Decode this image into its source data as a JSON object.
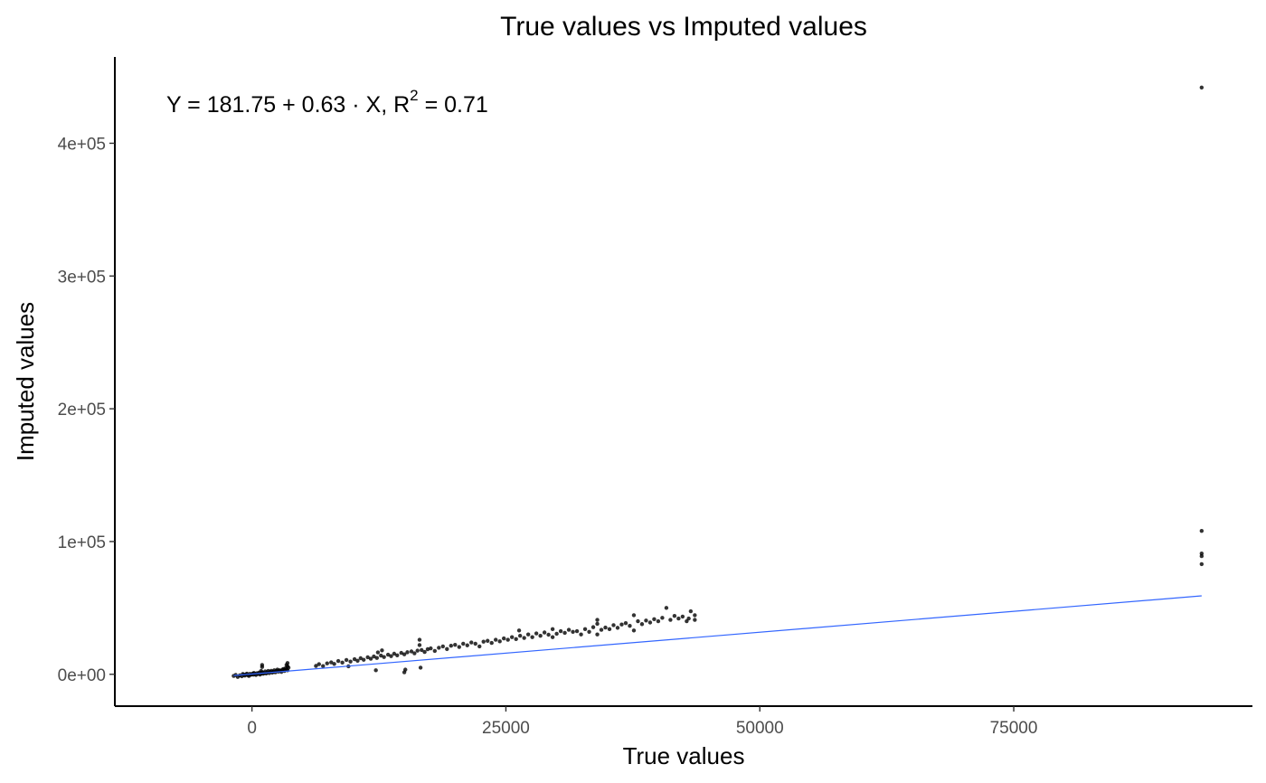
{
  "chart_data": {
    "type": "scatter",
    "title": "True values vs Imputed values",
    "xlabel": "True values",
    "ylabel": "Imputed values",
    "xlim": [
      -13500,
      98500
    ],
    "ylim": [
      -24000,
      465000
    ],
    "x_ticks": [
      {
        "value": 0,
        "label": "0"
      },
      {
        "value": 25000,
        "label": "25000"
      },
      {
        "value": 50000,
        "label": "50000"
      },
      {
        "value": 75000,
        "label": "75000"
      }
    ],
    "y_ticks": [
      {
        "value": 0,
        "label": "0e+00"
      },
      {
        "value": 100000,
        "label": "1e+05"
      },
      {
        "value": 200000,
        "label": "2e+05"
      },
      {
        "value": 300000,
        "label": "3e+05"
      },
      {
        "value": 400000,
        "label": "4e+05"
      }
    ],
    "grid": false,
    "regression": {
      "intercept": 181.75,
      "slope": 0.63,
      "r_squared": 0.71,
      "x_range": [
        -1800,
        93500
      ],
      "color": "#3366ff",
      "equation_label": {
        "prefix": "Y = 181.75 + 0.63 · X,  R",
        "sup": "2",
        "suffix": " = 0.71"
      }
    },
    "point_color": "#000000",
    "points": [
      [
        -1800,
        -1200
      ],
      [
        -1600,
        -500
      ],
      [
        -1400,
        -2000
      ],
      [
        -1200,
        -800
      ],
      [
        -1000,
        -1500
      ],
      [
        -900,
        200
      ],
      [
        -800,
        -300
      ],
      [
        -700,
        -1000
      ],
      [
        -600,
        -200
      ],
      [
        -500,
        500
      ],
      [
        -400,
        -600
      ],
      [
        -300,
        -1200
      ],
      [
        -200,
        300
      ],
      [
        -100,
        -400
      ],
      [
        0,
        0
      ],
      [
        100,
        600
      ],
      [
        150,
        -300
      ],
      [
        200,
        1000
      ],
      [
        300,
        200
      ],
      [
        400,
        -500
      ],
      [
        500,
        800
      ],
      [
        600,
        300
      ],
      [
        700,
        1200
      ],
      [
        800,
        -200
      ],
      [
        900,
        700
      ],
      [
        1000,
        1500
      ],
      [
        1100,
        400
      ],
      [
        1200,
        1000
      ],
      [
        1300,
        2200
      ],
      [
        1400,
        600
      ],
      [
        1500,
        1500
      ],
      [
        1600,
        2500
      ],
      [
        1700,
        900
      ],
      [
        1800,
        1800
      ],
      [
        1900,
        2600
      ],
      [
        2000,
        1200
      ],
      [
        2100,
        2000
      ],
      [
        2200,
        3000
      ],
      [
        2300,
        1500
      ],
      [
        2400,
        2500
      ],
      [
        2500,
        3500
      ],
      [
        2600,
        2000
      ],
      [
        2700,
        3000
      ],
      [
        2800,
        2600
      ],
      [
        2900,
        1800
      ],
      [
        3000,
        3500
      ],
      [
        3100,
        4000
      ],
      [
        3200,
        2500
      ],
      [
        3300,
        4500
      ],
      [
        3400,
        3800
      ],
      [
        3500,
        3000
      ],
      [
        3500,
        6000
      ],
      [
        3500,
        8500
      ],
      [
        3400,
        7000
      ],
      [
        3600,
        5000
      ],
      [
        1000,
        5500
      ],
      [
        1000,
        7000
      ],
      [
        900,
        2500
      ],
      [
        6300,
        6300
      ],
      [
        6600,
        7600
      ],
      [
        7000,
        6200
      ],
      [
        7400,
        8200
      ],
      [
        7800,
        9000
      ],
      [
        8100,
        7800
      ],
      [
        8500,
        10000
      ],
      [
        8900,
        8800
      ],
      [
        9300,
        10800
      ],
      [
        9500,
        6000
      ],
      [
        9700,
        9600
      ],
      [
        10100,
        11400
      ],
      [
        10400,
        10200
      ],
      [
        10700,
        12100
      ],
      [
        11000,
        10900
      ],
      [
        11400,
        12800
      ],
      [
        11700,
        11700
      ],
      [
        12000,
        13400
      ],
      [
        12200,
        3000
      ],
      [
        12300,
        12300
      ],
      [
        12400,
        16500
      ],
      [
        12700,
        14100
      ],
      [
        12800,
        18000
      ],
      [
        13000,
        13000
      ],
      [
        13400,
        14800
      ],
      [
        13700,
        13700
      ],
      [
        14000,
        15500
      ],
      [
        14300,
        14300
      ],
      [
        14700,
        16100
      ],
      [
        15000,
        1500
      ],
      [
        15100,
        3500
      ],
      [
        15000,
        15000
      ],
      [
        15300,
        16600
      ],
      [
        15700,
        17200
      ],
      [
        16000,
        15800
      ],
      [
        16300,
        17800
      ],
      [
        16500,
        26000
      ],
      [
        16500,
        22000
      ],
      [
        16600,
        5000
      ],
      [
        16700,
        18300
      ],
      [
        17000,
        16800
      ],
      [
        17300,
        18900
      ],
      [
        17600,
        19500
      ],
      [
        18000,
        17600
      ],
      [
        18400,
        20000
      ],
      [
        18800,
        21000
      ],
      [
        19200,
        19000
      ],
      [
        19600,
        21500
      ],
      [
        20000,
        22200
      ],
      [
        20400,
        20600
      ],
      [
        20800,
        23000
      ],
      [
        21200,
        21800
      ],
      [
        21600,
        24000
      ],
      [
        22000,
        23000
      ],
      [
        22400,
        21000
      ],
      [
        22800,
        24600
      ],
      [
        23200,
        25200
      ],
      [
        23600,
        23600
      ],
      [
        24000,
        26000
      ],
      [
        24400,
        24800
      ],
      [
        24800,
        27000
      ],
      [
        25200,
        26000
      ],
      [
        25600,
        28000
      ],
      [
        26000,
        26500
      ],
      [
        26300,
        33000
      ],
      [
        26400,
        29000
      ],
      [
        26800,
        27400
      ],
      [
        27200,
        30000
      ],
      [
        27600,
        28000
      ],
      [
        28000,
        30800
      ],
      [
        28400,
        29000
      ],
      [
        28800,
        31500
      ],
      [
        29200,
        29800
      ],
      [
        29600,
        34000
      ],
      [
        29600,
        28000
      ],
      [
        30000,
        30500
      ],
      [
        30400,
        32500
      ],
      [
        30800,
        31200
      ],
      [
        31200,
        33500
      ],
      [
        31600,
        32000
      ],
      [
        32000,
        32500
      ],
      [
        32400,
        30000
      ],
      [
        32800,
        34000
      ],
      [
        33200,
        32000
      ],
      [
        33600,
        35500
      ],
      [
        34000,
        38000
      ],
      [
        34000,
        30000
      ],
      [
        34000,
        41000
      ],
      [
        34400,
        33500
      ],
      [
        34800,
        35200
      ],
      [
        35200,
        34000
      ],
      [
        35600,
        37000
      ],
      [
        36000,
        35000
      ],
      [
        36400,
        37500
      ],
      [
        36800,
        38500
      ],
      [
        37200,
        36500
      ],
      [
        37600,
        44500
      ],
      [
        37600,
        33000
      ],
      [
        38000,
        40000
      ],
      [
        38400,
        37800
      ],
      [
        38800,
        40500
      ],
      [
        39200,
        39000
      ],
      [
        39600,
        41500
      ],
      [
        40000,
        40000
      ],
      [
        40400,
        42500
      ],
      [
        40800,
        50000
      ],
      [
        41200,
        41000
      ],
      [
        41600,
        44000
      ],
      [
        42000,
        42000
      ],
      [
        42400,
        43500
      ],
      [
        42800,
        40000
      ],
      [
        43000,
        42000
      ],
      [
        43200,
        47500
      ],
      [
        43600,
        44500
      ],
      [
        43600,
        41000
      ],
      [
        93500,
        442000
      ],
      [
        93500,
        108000
      ],
      [
        93500,
        91000
      ],
      [
        93500,
        89000
      ],
      [
        93500,
        83000
      ]
    ]
  }
}
